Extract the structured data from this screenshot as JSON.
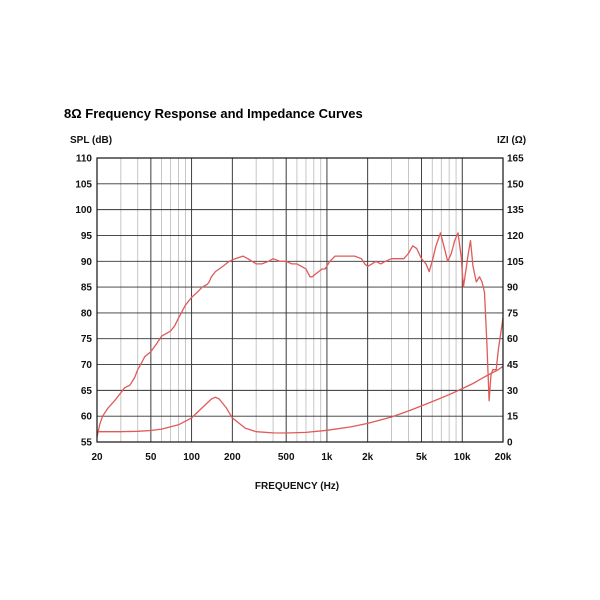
{
  "chart_data": {
    "type": "line",
    "title": "8Ω Frequency Response and Impedance Curves",
    "ylabel_left": "SPL (dB)",
    "ylabel_right": "IZI (Ω)",
    "xlabel": "FREQUENCY (Hz)",
    "x_scale": "log",
    "xlim": [
      20,
      20000
    ],
    "ylim_left": [
      55,
      110
    ],
    "ylim_right": [
      0,
      165
    ],
    "grid": true,
    "x_ticks": [
      {
        "value": 20,
        "label": "20"
      },
      {
        "value": 50,
        "label": "50"
      },
      {
        "value": 100,
        "label": "100"
      },
      {
        "value": 200,
        "label": "200"
      },
      {
        "value": 500,
        "label": "500"
      },
      {
        "value": 1000,
        "label": "1k"
      },
      {
        "value": 2000,
        "label": "2k"
      },
      {
        "value": 5000,
        "label": "5k"
      },
      {
        "value": 10000,
        "label": "10k"
      },
      {
        "value": 20000,
        "label": "20k"
      }
    ],
    "y_ticks_left": [
      "55",
      "60",
      "65",
      "70",
      "75",
      "80",
      "85",
      "90",
      "95",
      "100",
      "105",
      "110"
    ],
    "y_ticks_right": [
      "0",
      "15",
      "30",
      "45",
      "60",
      "75",
      "90",
      "105",
      "120",
      "135",
      "150",
      "165"
    ],
    "series": [
      {
        "axis": "left",
        "color": "#e05a5a",
        "points": [
          [
            20,
            56
          ],
          [
            21,
            58.5
          ],
          [
            22,
            60
          ],
          [
            24,
            61.5
          ],
          [
            27,
            63
          ],
          [
            30,
            64.5
          ],
          [
            32,
            65.5
          ],
          [
            35,
            66
          ],
          [
            38,
            67.5
          ],
          [
            40,
            69
          ],
          [
            43,
            70.5
          ],
          [
            45,
            71.5
          ],
          [
            50,
            72.5
          ],
          [
            55,
            74
          ],
          [
            60,
            75.5
          ],
          [
            65,
            76
          ],
          [
            70,
            76.5
          ],
          [
            75,
            77.5
          ],
          [
            80,
            79
          ],
          [
            90,
            81.5
          ],
          [
            100,
            83
          ],
          [
            110,
            84
          ],
          [
            120,
            85
          ],
          [
            130,
            85.5
          ],
          [
            135,
            86
          ],
          [
            140,
            87
          ],
          [
            150,
            88
          ],
          [
            170,
            89
          ],
          [
            190,
            90
          ],
          [
            210,
            90.5
          ],
          [
            240,
            91
          ],
          [
            260,
            90.5
          ],
          [
            300,
            89.5
          ],
          [
            330,
            89.5
          ],
          [
            370,
            90
          ],
          [
            400,
            90.5
          ],
          [
            450,
            90
          ],
          [
            500,
            90
          ],
          [
            550,
            89.5
          ],
          [
            600,
            89.5
          ],
          [
            650,
            89
          ],
          [
            700,
            88.5
          ],
          [
            750,
            87
          ],
          [
            780,
            87
          ],
          [
            820,
            87.5
          ],
          [
            870,
            88
          ],
          [
            920,
            88.5
          ],
          [
            970,
            88.5
          ],
          [
            1050,
            90
          ],
          [
            1150,
            91
          ],
          [
            1300,
            91
          ],
          [
            1450,
            91
          ],
          [
            1600,
            91
          ],
          [
            1800,
            90.5
          ],
          [
            1900,
            89.5
          ],
          [
            2000,
            89
          ],
          [
            2150,
            89.5
          ],
          [
            2300,
            90
          ],
          [
            2500,
            89.5
          ],
          [
            2700,
            90
          ],
          [
            3000,
            90.5
          ],
          [
            3300,
            90.5
          ],
          [
            3700,
            90.5
          ],
          [
            4000,
            91.5
          ],
          [
            4300,
            93
          ],
          [
            4600,
            92.5
          ],
          [
            5000,
            90.5
          ],
          [
            5400,
            89.5
          ],
          [
            5700,
            88
          ],
          [
            6000,
            90
          ],
          [
            6400,
            93
          ],
          [
            6900,
            95.5
          ],
          [
            7300,
            93
          ],
          [
            7800,
            90
          ],
          [
            8300,
            91.5
          ],
          [
            8800,
            94
          ],
          [
            9300,
            95.5
          ],
          [
            9800,
            91
          ],
          [
            10200,
            85
          ],
          [
            10600,
            88
          ],
          [
            11000,
            91
          ],
          [
            11500,
            94
          ],
          [
            12000,
            89
          ],
          [
            12700,
            86
          ],
          [
            13400,
            87
          ],
          [
            14000,
            86
          ],
          [
            14600,
            84
          ],
          [
            15200,
            74
          ],
          [
            15800,
            63
          ],
          [
            16300,
            68
          ],
          [
            16800,
            69
          ],
          [
            17800,
            69
          ],
          [
            18500,
            73
          ],
          [
            20000,
            79
          ]
        ]
      },
      {
        "axis": "right",
        "color": "#e05a5a",
        "points": [
          [
            20,
            6
          ],
          [
            30,
            6
          ],
          [
            40,
            6.2
          ],
          [
            50,
            6.7
          ],
          [
            60,
            7.5
          ],
          [
            80,
            10
          ],
          [
            100,
            14
          ],
          [
            120,
            20
          ],
          [
            140,
            25
          ],
          [
            150,
            26
          ],
          [
            160,
            25
          ],
          [
            180,
            20
          ],
          [
            200,
            14
          ],
          [
            250,
            8
          ],
          [
            300,
            6
          ],
          [
            400,
            5.3
          ],
          [
            500,
            5.2
          ],
          [
            700,
            5.6
          ],
          [
            1000,
            6.8
          ],
          [
            1500,
            8.8
          ],
          [
            2000,
            10.8
          ],
          [
            3000,
            14.5
          ],
          [
            4000,
            18
          ],
          [
            5000,
            21
          ],
          [
            6000,
            23.5
          ],
          [
            8000,
            27.5
          ],
          [
            10000,
            31
          ],
          [
            12000,
            34
          ],
          [
            14000,
            37
          ],
          [
            16000,
            39.5
          ],
          [
            18000,
            41.5
          ],
          [
            20000,
            44
          ]
        ]
      }
    ]
  }
}
